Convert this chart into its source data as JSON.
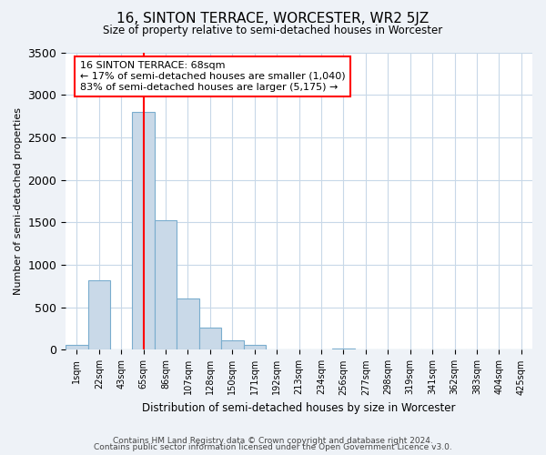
{
  "title": "16, SINTON TERRACE, WORCESTER, WR2 5JZ",
  "subtitle": "Size of property relative to semi-detached houses in Worcester",
  "xlabel": "Distribution of semi-detached houses by size in Worcester",
  "ylabel": "Number of semi-detached properties",
  "footnote1": "Contains HM Land Registry data © Crown copyright and database right 2024.",
  "footnote2": "Contains public sector information licensed under the Open Government Licence v3.0.",
  "bin_labels": [
    "1sqm",
    "22sqm",
    "43sqm",
    "65sqm",
    "86sqm",
    "107sqm",
    "128sqm",
    "150sqm",
    "171sqm",
    "192sqm",
    "213sqm",
    "234sqm",
    "256sqm",
    "277sqm",
    "298sqm",
    "319sqm",
    "341sqm",
    "362sqm",
    "383sqm",
    "404sqm",
    "425sqm"
  ],
  "bin_values": [
    60,
    820,
    0,
    2800,
    1520,
    600,
    260,
    110,
    55,
    0,
    0,
    0,
    20,
    0,
    0,
    0,
    0,
    0,
    0,
    0,
    0
  ],
  "bar_color": "#c9d9e8",
  "bar_edgecolor": "#7aadce",
  "property_line_x": 3,
  "property_line_color": "red",
  "annotation_title": "16 SINTON TERRACE: 68sqm",
  "annotation_line1": "← 17% of semi-detached houses are smaller (1,040)",
  "annotation_line2": "83% of semi-detached houses are larger (5,175) →",
  "ylim": [
    0,
    3500
  ],
  "yticks": [
    0,
    500,
    1000,
    1500,
    2000,
    2500,
    3000,
    3500
  ],
  "bg_color": "#eef2f7",
  "plot_bg_color": "#ffffff",
  "grid_color": "#c8d8e8"
}
